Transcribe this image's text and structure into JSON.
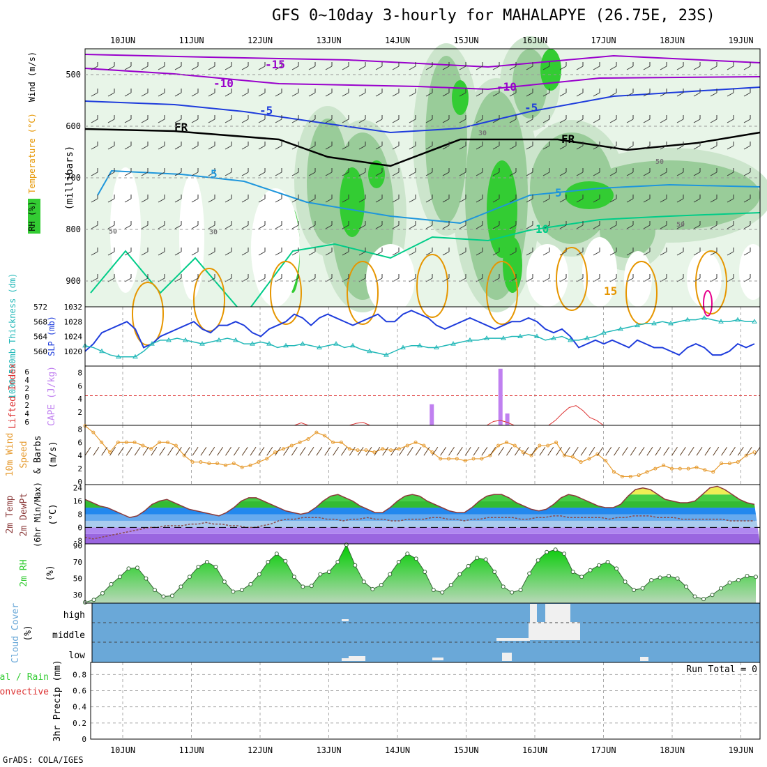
{
  "title": "GFS 0~10day 3-hourly for MAHALAPYE (26.75E, 23S)",
  "credit": "GrADS: COLA/IGES",
  "colors": {
    "rh_dark": "#33cc33",
    "rh_mid": "#99cc99",
    "rh_light": "#cce5cc",
    "rh_pale": "#e8f5e8",
    "temp_purple": "#9900cc",
    "temp_blue": "#1e3cdc",
    "temp_cyan": "#1e96dc",
    "temp_green": "#00cc88",
    "temp_orange": "#e69600",
    "temp_magenta": "#e6008c",
    "slp": "#1e3cdc",
    "thickness": "#22b8b8",
    "lifted": "#dd3333",
    "cape": "#c080f0",
    "wind10": "#e69b30",
    "barb": "#5a3a1e",
    "cloud": "#6aa8d8",
    "cloud_white": "#f0f0f0"
  },
  "chart_data": [
    {
      "panel": "pressure-time",
      "type": "heatmap",
      "ylabel": "(millibars)",
      "side_labels": [
        "RH (%)",
        "Temperature (°C)",
        "Wind (m/s)"
      ],
      "dates": [
        "10JUN",
        "11JUN",
        "12JUN",
        "13JUN",
        "14JUN",
        "15JUN",
        "16JUN",
        "17JUN",
        "18JUN",
        "19JUN"
      ],
      "yticks": [
        500,
        600,
        700,
        800,
        900
      ],
      "ylim": [
        450,
        950
      ],
      "contour_labels": [
        "-15",
        "-10",
        "-10",
        "-5",
        "-5",
        "FR",
        "FR",
        "5",
        "5",
        "10",
        "15",
        "30",
        "30",
        "50",
        "50",
        "50"
      ]
    },
    {
      "panel": "slp-thickness",
      "type": "line",
      "labels": [
        "1000-500mb Thickness (dm)",
        "SLP (mb)"
      ],
      "left_ticks": [
        560,
        564,
        568,
        572
      ],
      "right_ticks": [
        1020,
        1024,
        1028,
        1032
      ],
      "slp": [
        1020,
        1022,
        1025,
        1026,
        1027,
        1028,
        1026,
        1021,
        1022,
        1024,
        1025,
        1026,
        1027,
        1028,
        1026,
        1025,
        1027,
        1027,
        1028,
        1027,
        1025,
        1024,
        1026,
        1027,
        1028,
        1030,
        1029,
        1027,
        1029,
        1030,
        1029,
        1028,
        1027,
        1028,
        1029,
        1030,
        1028,
        1028,
        1030,
        1031,
        1030,
        1029,
        1027,
        1026,
        1027,
        1028,
        1029,
        1028,
        1027,
        1026,
        1027,
        1028,
        1028,
        1029,
        1028,
        1026,
        1025,
        1026,
        1024,
        1021,
        1022,
        1023,
        1022,
        1023,
        1022,
        1021,
        1023,
        1022,
        1021,
        1021,
        1020,
        1019,
        1021,
        1022,
        1021,
        1019,
        1019,
        1020,
        1022,
        1021,
        1022
      ],
      "thickness": [
        561.5,
        561,
        560,
        559,
        558.5,
        558.5,
        558.5,
        560,
        562,
        563,
        563,
        563.5,
        563,
        562.5,
        562,
        562.5,
        563,
        563.5,
        563,
        562,
        562,
        562.5,
        562,
        561,
        561.5,
        561.5,
        562,
        561.5,
        561,
        561.5,
        562,
        561,
        561.5,
        560.5,
        560,
        559.5,
        559,
        560,
        561,
        561.5,
        561.5,
        561,
        561,
        561.5,
        562,
        562.5,
        563,
        563,
        563.5,
        563.5,
        563.5,
        564,
        564,
        564.5,
        564,
        563,
        563.5,
        564,
        563,
        563,
        563.5,
        564,
        565,
        565.5,
        566,
        566.5,
        567,
        567.5,
        567.5,
        568,
        567.5,
        568,
        568.5,
        568.5,
        569,
        568.5,
        568,
        568,
        568.5,
        568,
        568
      ]
    },
    {
      "panel": "lifted-cape",
      "type": "bar",
      "labels": [
        "Lifted Index",
        "CAPE (J/kg)"
      ],
      "left_ticks": [
        "6",
        "4",
        "2",
        "0",
        "2",
        "4",
        "6"
      ],
      "right_ticks": [
        "2",
        "4",
        "6",
        "8"
      ],
      "cape_bars": [
        {
          "x": 14.5,
          "value": 3.2
        },
        {
          "x": 15.5,
          "value": 8.6
        },
        {
          "x": 15.6,
          "value": 1.8
        }
      ],
      "lifted_index": [
        {
          "x": 12.5,
          "y": -6
        },
        {
          "x": 12.6,
          "y": -5.5
        },
        {
          "x": 12.7,
          "y": -6
        },
        {
          "x": 13.3,
          "y": -6
        },
        {
          "x": 13.4,
          "y": -5.6
        },
        {
          "x": 13.5,
          "y": -5.4
        },
        {
          "x": 13.6,
          "y": -6
        },
        {
          "x": 15.3,
          "y": -6
        },
        {
          "x": 15.4,
          "y": -5.2
        },
        {
          "x": 15.5,
          "y": -5
        },
        {
          "x": 15.6,
          "y": -5.4
        },
        {
          "x": 15.7,
          "y": -6
        },
        {
          "x": 16.2,
          "y": -6
        },
        {
          "x": 16.3,
          "y": -5
        },
        {
          "x": 16.4,
          "y": -3.6
        },
        {
          "x": 16.5,
          "y": -2.4
        },
        {
          "x": 16.6,
          "y": -2
        },
        {
          "x": 16.7,
          "y": -3
        },
        {
          "x": 16.8,
          "y": -4.4
        },
        {
          "x": 16.9,
          "y": -5
        },
        {
          "x": 17.0,
          "y": -6
        }
      ]
    },
    {
      "panel": "wind10m",
      "type": "line",
      "labels": [
        "10m Wind",
        "Speed",
        "& Barbs",
        "(m/s)"
      ],
      "left_ticks": [
        0,
        2,
        4,
        6,
        8
      ],
      "speed": [
        8.5,
        7.5,
        6,
        4.5,
        6,
        6,
        6,
        5.5,
        5,
        6,
        6,
        5.5,
        4,
        3,
        3,
        2.8,
        2.8,
        2.5,
        2.8,
        2.2,
        2.5,
        3,
        3.5,
        4.5,
        5,
        5.5,
        6,
        6.5,
        7.5,
        7,
        6,
        6,
        5,
        4.8,
        4.8,
        4.5,
        5,
        4.8,
        5,
        5.5,
        6,
        5.5,
        4.5,
        3.5,
        3.5,
        3.5,
        3.2,
        3.5,
        3.5,
        4,
        5.5,
        6,
        5.5,
        4.5,
        4,
        5.5,
        5.5,
        6,
        4,
        3.8,
        3,
        3.5,
        4.2,
        3.2,
        1.5,
        0.8,
        0.8,
        1,
        1.5,
        2,
        2.5,
        2,
        2,
        2,
        2.2,
        1.8,
        1.5,
        2.8,
        2.8,
        3,
        4,
        4.5
      ]
    },
    {
      "panel": "temp2m",
      "type": "area",
      "labels": [
        "2m Temp",
        "2m DewPt",
        "(6hr Min/Max)",
        "(°C)"
      ],
      "left_ticks": [
        -8,
        0,
        8,
        16,
        24
      ],
      "temp": [
        17,
        15,
        13,
        12,
        10,
        8,
        6,
        7,
        10,
        14,
        16,
        17,
        15,
        13,
        11,
        10,
        9,
        8,
        7,
        9,
        12,
        16,
        18,
        18,
        16,
        14,
        12,
        10,
        9,
        8,
        9,
        12,
        16,
        19,
        20,
        18,
        16,
        13,
        11,
        9,
        9,
        12,
        16,
        19,
        20,
        19,
        16,
        14,
        12,
        10,
        9,
        9,
        12,
        16,
        19,
        20,
        20,
        18,
        15,
        13,
        11,
        10,
        11,
        14,
        18,
        20,
        19,
        17,
        15,
        13,
        12,
        12,
        14,
        19,
        23,
        24,
        23,
        20,
        17,
        16,
        15,
        15,
        16,
        20,
        24,
        25,
        23,
        20,
        17,
        15,
        14
      ],
      "dewpoint": [
        -6,
        -7,
        -6,
        -5,
        -4,
        -3,
        -2,
        -1,
        0,
        0,
        1,
        1,
        1,
        2,
        2,
        3,
        2,
        2,
        1,
        1,
        0,
        0,
        1,
        2,
        4,
        5,
        5,
        6,
        6,
        6,
        5,
        5,
        4,
        5,
        5,
        6,
        5,
        5,
        4,
        4,
        5,
        5,
        5,
        6,
        6,
        5,
        5,
        4,
        5,
        5,
        6,
        6,
        6,
        6,
        5,
        5,
        6,
        6,
        7,
        7,
        6,
        6,
        6,
        6,
        6,
        5,
        6,
        6,
        7,
        7,
        7,
        6,
        6,
        6,
        5,
        5,
        5,
        5,
        5,
        5,
        4,
        4,
        4,
        4
      ]
    },
    {
      "panel": "rh2m",
      "type": "area",
      "labels": [
        "2m RH",
        "(%)"
      ],
      "left_ticks": [
        30,
        50,
        70,
        90
      ],
      "rh": [
        21,
        24,
        32,
        43,
        52,
        62,
        63,
        50,
        36,
        28,
        29,
        40,
        52,
        64,
        70,
        64,
        46,
        34,
        36,
        43,
        55,
        70,
        80,
        71,
        52,
        40,
        41,
        55,
        58,
        70,
        91,
        66,
        46,
        37,
        42,
        55,
        70,
        80,
        74,
        58,
        36,
        33,
        42,
        55,
        65,
        75,
        73,
        58,
        40,
        33,
        36,
        56,
        72,
        82,
        85,
        80,
        58,
        52,
        60,
        66,
        70,
        62,
        46,
        36,
        38,
        48,
        51,
        53,
        50,
        40,
        28,
        25,
        30,
        38,
        45,
        48,
        53,
        52
      ]
    },
    {
      "panel": "cloud-cover",
      "type": "bar",
      "labels": [
        "Cloud Cover",
        "(%)"
      ],
      "levels": [
        "high",
        "middle",
        "low"
      ]
    },
    {
      "panel": "precip",
      "type": "bar",
      "labels": [
        "Total / Rain",
        "Convective",
        "3hr Precip (mm)"
      ],
      "left_ticks": [
        0,
        0.2,
        0.4,
        0.6,
        0.8
      ],
      "run_total": "Run Total = 0"
    }
  ]
}
